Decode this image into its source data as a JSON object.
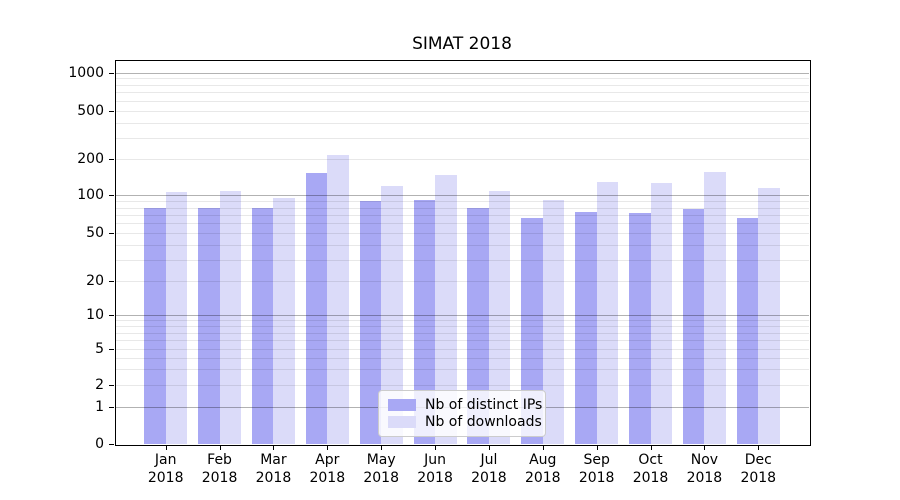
{
  "chart_data": {
    "type": "bar",
    "title": "SIMAT 2018",
    "year": "2018",
    "months": [
      "Jan",
      "Feb",
      "Mar",
      "Apr",
      "May",
      "Jun",
      "Jul",
      "Aug",
      "Sep",
      "Oct",
      "Nov",
      "Dec"
    ],
    "series": [
      {
        "name": "Nb of distinct IPs",
        "color": "#a8a8f4",
        "values": [
          80,
          80,
          80,
          154,
          90,
          92,
          79,
          66,
          74,
          73,
          78,
          66
        ]
      },
      {
        "name": "Nb of downloads",
        "color": "#dbdbf9",
        "values": [
          107,
          109,
          96,
          217,
          119,
          147,
          109,
          92,
          129,
          127,
          156,
          114
        ]
      }
    ],
    "y_axis": {
      "scale": "symlog",
      "tick_labels": [
        "0",
        "1",
        "2",
        "5",
        "10",
        "20",
        "50",
        "100",
        "200",
        "500",
        "1000"
      ]
    },
    "x_axis": {
      "tick_labels_line1": [
        "Jan",
        "Feb",
        "Mar",
        "Apr",
        "May",
        "Jun",
        "Jul",
        "Aug",
        "Sep",
        "Oct",
        "Nov",
        "Dec"
      ],
      "tick_labels_line2": "2018"
    },
    "legend": {
      "position": "bottom-center",
      "entries": [
        "Nb of distinct IPs",
        "Nb of downloads"
      ]
    },
    "grid": true
  }
}
